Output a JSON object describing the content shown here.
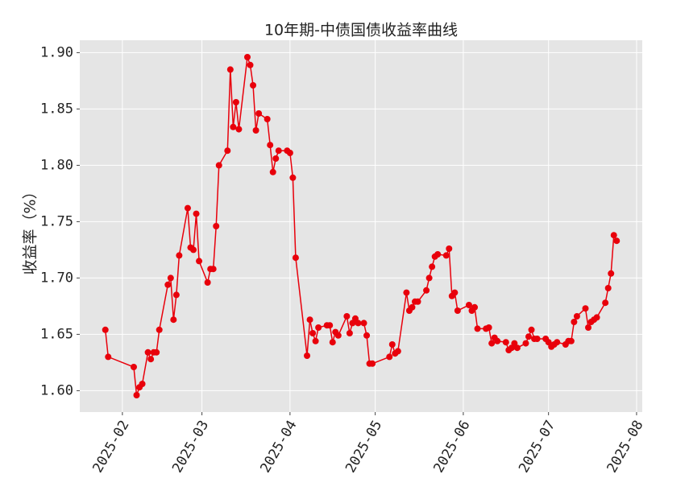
{
  "chart_data": {
    "type": "line",
    "title": "10年期-中债国债收益率曲线",
    "ylabel": "收益率（%）",
    "color": "#e8000b",
    "grid": true,
    "x": [
      26,
      27,
      36,
      37,
      38,
      39,
      41,
      42,
      43,
      44,
      45,
      48,
      49,
      50,
      51,
      52,
      55,
      56,
      57,
      58,
      59,
      62,
      63,
      64,
      65,
      66,
      69,
      70,
      71,
      72,
      73,
      76,
      77,
      78,
      79,
      80,
      83,
      84,
      85,
      86,
      87,
      90,
      91,
      92,
      93,
      97,
      98,
      99,
      100,
      101,
      104,
      105,
      106,
      107,
      108,
      111,
      112,
      113,
      114,
      115,
      117,
      118,
      119,
      120,
      126,
      127,
      128,
      129,
      132,
      133,
      134,
      135,
      136,
      139,
      140,
      141,
      142,
      143,
      146,
      147,
      148,
      149,
      150,
      154,
      155,
      156,
      157,
      160,
      161,
      162,
      163,
      164,
      167,
      168,
      169,
      170,
      171,
      174,
      175,
      176,
      177,
      178,
      181,
      182,
      183,
      184,
      185,
      188,
      189,
      190,
      191,
      192,
      195,
      196,
      197,
      198,
      199,
      202,
      203,
      204,
      205,
      206
    ],
    "values": [
      1.654,
      1.63,
      1.621,
      1.596,
      1.603,
      1.606,
      1.634,
      1.628,
      1.634,
      1.634,
      1.654,
      1.694,
      1.7,
      1.663,
      1.685,
      1.72,
      1.762,
      1.727,
      1.725,
      1.757,
      1.715,
      1.696,
      1.708,
      1.708,
      1.746,
      1.8,
      1.813,
      1.885,
      1.834,
      1.856,
      1.832,
      1.896,
      1.889,
      1.871,
      1.831,
      1.846,
      1.841,
      1.818,
      1.794,
      1.806,
      1.813,
      1.813,
      1.811,
      1.789,
      1.718,
      1.631,
      1.663,
      1.651,
      1.644,
      1.656,
      1.658,
      1.658,
      1.643,
      1.652,
      1.649,
      1.666,
      1.651,
      1.66,
      1.664,
      1.66,
      1.66,
      1.649,
      1.624,
      1.624,
      1.63,
      1.641,
      1.633,
      1.635,
      1.687,
      1.671,
      1.674,
      1.679,
      1.679,
      1.689,
      1.7,
      1.71,
      1.719,
      1.721,
      1.72,
      1.726,
      1.684,
      1.687,
      1.671,
      1.676,
      1.671,
      1.674,
      1.655,
      1.655,
      1.656,
      1.642,
      1.647,
      1.644,
      1.643,
      1.636,
      1.638,
      1.642,
      1.638,
      1.642,
      1.648,
      1.654,
      1.646,
      1.646,
      1.646,
      1.643,
      1.639,
      1.641,
      1.643,
      1.641,
      1.644,
      1.644,
      1.661,
      1.666,
      1.673,
      1.656,
      1.661,
      1.663,
      1.665,
      1.678,
      1.691,
      1.704,
      1.738,
      1.733
    ],
    "xlim": [
      17,
      215
    ],
    "xticks": [
      {
        "value": 32,
        "label": "2025-02"
      },
      {
        "value": 60,
        "label": "2025-03"
      },
      {
        "value": 91,
        "label": "2025-04"
      },
      {
        "value": 121,
        "label": "2025-05"
      },
      {
        "value": 152,
        "label": "2025-06"
      },
      {
        "value": 182,
        "label": "2025-07"
      },
      {
        "value": 213,
        "label": "2025-08"
      }
    ],
    "ylim": [
      1.581,
      1.911
    ],
    "yticks": [
      {
        "value": 1.6,
        "label": "1.60"
      },
      1.65,
      {
        "value": 1.7,
        "label": "1.70"
      },
      1.75,
      {
        "value": 1.8,
        "label": "1.80"
      },
      1.85,
      {
        "value": 1.9,
        "label": "1.90"
      }
    ]
  }
}
